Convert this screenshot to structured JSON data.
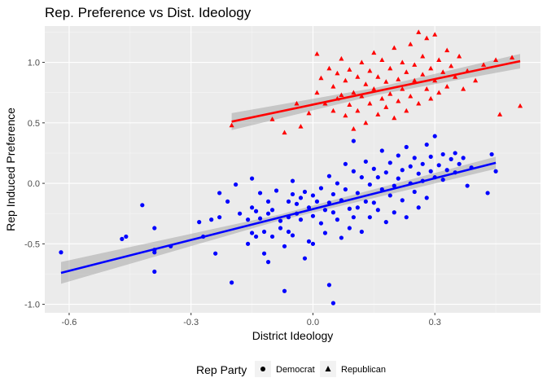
{
  "chart_data": {
    "type": "scatter",
    "title": "Rep. Preference vs Dist. Ideology",
    "xlabel": "District Ideology",
    "ylabel": "Rep Induced Preference",
    "xlim": [
      -0.66,
      0.56
    ],
    "ylim": [
      -1.07,
      1.3
    ],
    "xticks": [
      -0.6,
      -0.3,
      0.0,
      0.3
    ],
    "xtick_labels": [
      "-0.6",
      "-0.3",
      "0.0",
      "0.3"
    ],
    "yticks": [
      -1.0,
      -0.5,
      0.0,
      0.5,
      1.0
    ],
    "ytick_labels": [
      "-1.0",
      "-0.5",
      "0.0",
      "0.5",
      "1.0"
    ],
    "grid": true,
    "legend": {
      "title": "Rep Party",
      "position": "bottom",
      "entries": [
        {
          "label": "Democrat",
          "shape": "circle"
        },
        {
          "label": "Republican",
          "shape": "triangle"
        }
      ]
    },
    "series": [
      {
        "name": "Democrat",
        "color": "#0000FF",
        "shape": "circle",
        "points": [
          [
            -0.62,
            -0.57
          ],
          [
            -0.47,
            -0.46
          ],
          [
            -0.46,
            -0.44
          ],
          [
            -0.42,
            -0.18
          ],
          [
            -0.39,
            -0.55
          ],
          [
            -0.39,
            -0.57
          ],
          [
            -0.39,
            -0.37
          ],
          [
            -0.39,
            -0.73
          ],
          [
            -0.35,
            -0.52
          ],
          [
            -0.28,
            -0.32
          ],
          [
            -0.27,
            -0.44
          ],
          [
            -0.25,
            -0.3
          ],
          [
            -0.24,
            -0.58
          ],
          [
            -0.23,
            -0.28
          ],
          [
            -0.23,
            -0.08
          ],
          [
            -0.21,
            -0.15
          ],
          [
            -0.2,
            -0.82
          ],
          [
            -0.19,
            -0.01
          ],
          [
            -0.18,
            -0.25
          ],
          [
            -0.16,
            -0.3
          ],
          [
            -0.16,
            -0.5
          ],
          [
            -0.15,
            -0.2
          ],
          [
            -0.15,
            0.04
          ],
          [
            -0.15,
            -0.41
          ],
          [
            -0.14,
            -0.44
          ],
          [
            -0.14,
            -0.23
          ],
          [
            -0.13,
            -0.08
          ],
          [
            -0.13,
            -0.29
          ],
          [
            -0.12,
            -0.4
          ],
          [
            -0.12,
            -0.58
          ],
          [
            -0.11,
            -0.15
          ],
          [
            -0.11,
            -0.25
          ],
          [
            -0.11,
            -0.65
          ],
          [
            -0.1,
            -0.44
          ],
          [
            -0.1,
            -0.22
          ],
          [
            -0.09,
            -0.06
          ],
          [
            -0.08,
            -0.31
          ],
          [
            -0.08,
            -0.37
          ],
          [
            -0.07,
            -0.52
          ],
          [
            -0.07,
            -0.89
          ],
          [
            -0.06,
            -0.15
          ],
          [
            -0.06,
            -0.28
          ],
          [
            -0.06,
            -0.4
          ],
          [
            -0.05,
            0.02
          ],
          [
            -0.05,
            -0.09
          ],
          [
            -0.05,
            -0.43
          ],
          [
            -0.04,
            -0.25
          ],
          [
            -0.04,
            -0.17
          ],
          [
            -0.03,
            -0.12
          ],
          [
            -0.03,
            -0.3
          ],
          [
            -0.02,
            -0.62
          ],
          [
            -0.02,
            -0.07
          ],
          [
            -0.01,
            -0.48
          ],
          [
            -0.01,
            -0.2
          ],
          [
            0.0,
            -0.27
          ],
          [
            0.0,
            -0.1
          ],
          [
            0.0,
            -0.5
          ],
          [
            0.01,
            -0.15
          ],
          [
            0.02,
            -0.33
          ],
          [
            0.02,
            -0.04
          ],
          [
            0.03,
            -0.22
          ],
          [
            0.03,
            -0.41
          ],
          [
            0.04,
            0.06
          ],
          [
            0.04,
            -0.16
          ],
          [
            0.04,
            -0.84
          ],
          [
            0.05,
            -0.09
          ],
          [
            0.05,
            -0.24
          ],
          [
            0.05,
            -0.99
          ],
          [
            0.06,
            -0.3
          ],
          [
            0.06,
            0.0
          ],
          [
            0.07,
            -0.14
          ],
          [
            0.07,
            -0.45
          ],
          [
            0.08,
            -0.05
          ],
          [
            0.08,
            0.16
          ],
          [
            0.09,
            -0.21
          ],
          [
            0.09,
            -0.37
          ],
          [
            0.1,
            0.1
          ],
          [
            0.1,
            -0.28
          ],
          [
            0.1,
            0.35
          ],
          [
            0.11,
            -0.08
          ],
          [
            0.11,
            -0.2
          ],
          [
            0.12,
            0.05
          ],
          [
            0.12,
            -0.4
          ],
          [
            0.13,
            -0.15
          ],
          [
            0.13,
            0.18
          ],
          [
            0.14,
            -0.01
          ],
          [
            0.14,
            -0.28
          ],
          [
            0.15,
            0.12
          ],
          [
            0.15,
            -0.16
          ],
          [
            0.16,
            -0.22
          ],
          [
            0.16,
            0.05
          ],
          [
            0.17,
            0.27
          ],
          [
            0.17,
            -0.05
          ],
          [
            0.18,
            -0.32
          ],
          [
            0.18,
            0.09
          ],
          [
            0.19,
            -0.1
          ],
          [
            0.19,
            0.17
          ],
          [
            0.2,
            -0.24
          ],
          [
            0.2,
            -0.02
          ],
          [
            0.21,
            0.23
          ],
          [
            0.21,
            0.04
          ],
          [
            0.22,
            -0.14
          ],
          [
            0.22,
            0.11
          ],
          [
            0.23,
            0.3
          ],
          [
            0.23,
            -0.28
          ],
          [
            0.24,
            0.0
          ],
          [
            0.24,
            0.14
          ],
          [
            0.25,
            -0.07
          ],
          [
            0.25,
            0.21
          ],
          [
            0.26,
            0.08
          ],
          [
            0.26,
            -0.2
          ],
          [
            0.27,
            0.16
          ],
          [
            0.27,
            0.02
          ],
          [
            0.28,
            0.32
          ],
          [
            0.28,
            -0.12
          ],
          [
            0.29,
            0.1
          ],
          [
            0.29,
            0.22
          ],
          [
            0.3,
            0.05
          ],
          [
            0.3,
            0.39
          ],
          [
            0.31,
            0.15
          ],
          [
            0.32,
            0.03
          ],
          [
            0.32,
            0.24
          ],
          [
            0.33,
            0.11
          ],
          [
            0.34,
            0.2
          ],
          [
            0.35,
            0.25
          ],
          [
            0.35,
            0.09
          ],
          [
            0.36,
            0.16
          ],
          [
            0.37,
            0.21
          ],
          [
            0.38,
            -0.02
          ],
          [
            0.39,
            0.13
          ],
          [
            0.43,
            -0.08
          ],
          [
            0.44,
            0.24
          ],
          [
            0.45,
            0.1
          ]
        ],
        "trend": {
          "x": [
            -0.62,
            0.45
          ],
          "y": [
            -0.74,
            0.17
          ],
          "ci_half_width": [
            0.09,
            0.05
          ]
        }
      },
      {
        "name": "Republican",
        "color": "#FF0000",
        "shape": "triangle",
        "points": [
          [
            -0.2,
            0.48
          ],
          [
            -0.1,
            0.53
          ],
          [
            -0.07,
            0.42
          ],
          [
            -0.04,
            0.66
          ],
          [
            -0.03,
            0.47
          ],
          [
            -0.01,
            0.58
          ],
          [
            0.01,
            1.07
          ],
          [
            0.01,
            0.75
          ],
          [
            0.02,
            0.87
          ],
          [
            0.03,
            0.66
          ],
          [
            0.04,
            0.95
          ],
          [
            0.05,
            0.8
          ],
          [
            0.05,
            0.6
          ],
          [
            0.06,
            0.7
          ],
          [
            0.06,
            0.91
          ],
          [
            0.07,
            0.73
          ],
          [
            0.07,
            1.03
          ],
          [
            0.08,
            0.56
          ],
          [
            0.08,
            0.85
          ],
          [
            0.09,
            0.65
          ],
          [
            0.09,
            0.94
          ],
          [
            0.1,
            0.75
          ],
          [
            0.1,
            0.45
          ],
          [
            0.11,
            0.88
          ],
          [
            0.11,
            0.6
          ],
          [
            0.12,
            1.0
          ],
          [
            0.12,
            0.72
          ],
          [
            0.13,
            0.82
          ],
          [
            0.13,
            0.5
          ],
          [
            0.14,
            0.93
          ],
          [
            0.14,
            0.66
          ],
          [
            0.15,
            1.08
          ],
          [
            0.15,
            0.78
          ],
          [
            0.16,
            0.57
          ],
          [
            0.16,
            0.88
          ],
          [
            0.17,
            0.7
          ],
          [
            0.17,
            1.02
          ],
          [
            0.18,
            0.63
          ],
          [
            0.18,
            0.84
          ],
          [
            0.19,
            0.95
          ],
          [
            0.19,
            0.74
          ],
          [
            0.2,
            1.12
          ],
          [
            0.2,
            0.54
          ],
          [
            0.21,
            0.86
          ],
          [
            0.21,
            0.68
          ],
          [
            0.22,
            1.0
          ],
          [
            0.22,
            0.78
          ],
          [
            0.23,
            0.6
          ],
          [
            0.23,
            0.92
          ],
          [
            0.24,
            1.15
          ],
          [
            0.24,
            0.72
          ],
          [
            0.25,
            0.85
          ],
          [
            0.25,
            0.98
          ],
          [
            0.26,
            1.25
          ],
          [
            0.26,
            0.66
          ],
          [
            0.27,
            0.9
          ],
          [
            0.27,
            1.05
          ],
          [
            0.28,
            0.78
          ],
          [
            0.28,
            1.2
          ],
          [
            0.29,
            0.95
          ],
          [
            0.29,
            0.7
          ],
          [
            0.3,
            1.23
          ],
          [
            0.3,
            0.85
          ],
          [
            0.31,
            1.02
          ],
          [
            0.31,
            0.75
          ],
          [
            0.32,
            0.92
          ],
          [
            0.33,
            1.1
          ],
          [
            0.33,
            0.8
          ],
          [
            0.34,
            0.97
          ],
          [
            0.35,
            0.88
          ],
          [
            0.36,
            1.05
          ],
          [
            0.37,
            0.78
          ],
          [
            0.38,
            0.93
          ],
          [
            0.4,
            0.85
          ],
          [
            0.42,
            0.98
          ],
          [
            0.45,
            1.02
          ],
          [
            0.46,
            0.57
          ],
          [
            0.49,
            1.04
          ],
          [
            0.51,
            0.64
          ]
        ],
        "trend": {
          "x": [
            -0.2,
            0.51
          ],
          "y": [
            0.51,
            1.01
          ],
          "ci_half_width": [
            0.07,
            0.06
          ]
        }
      }
    ]
  }
}
